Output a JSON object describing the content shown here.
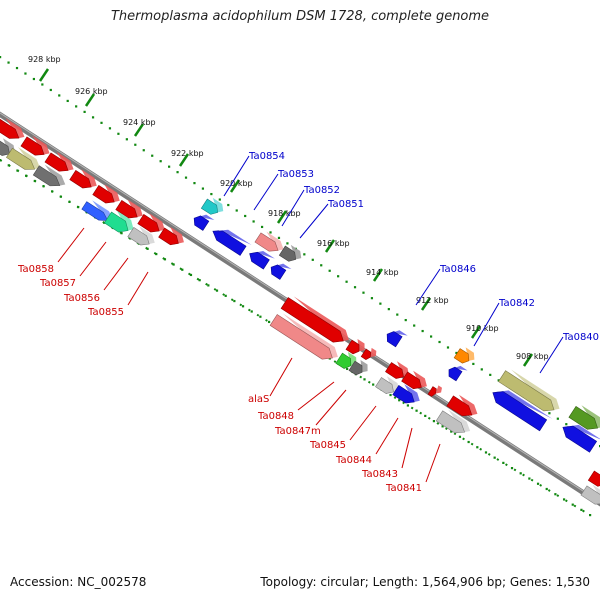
{
  "title": "Thermoplasma acidophilum DSM 1728, complete genome",
  "footer": {
    "accession": "Accession: NC_002578",
    "summary": "Topology: circular; Length: 1,564,906 bp; Genes: 1,530"
  },
  "colors": {
    "forward_label": "#0000cc",
    "reverse_label": "#cc0000",
    "scale_ticks": "#118811",
    "backbone": "#808080"
  },
  "scale_ticks": [
    {
      "label": "928 kbp"
    },
    {
      "label": "926 kbp"
    },
    {
      "label": "924 kbp"
    },
    {
      "label": "922 kbp"
    },
    {
      "label": "920 kbp"
    },
    {
      "label": "918 kbp"
    },
    {
      "label": "916 kbp"
    },
    {
      "label": "914 kbp"
    },
    {
      "label": "912 kbp"
    },
    {
      "label": "910 kbp"
    },
    {
      "label": "908 kbp"
    }
  ],
  "forward_labels": [
    {
      "label": "Ta0854"
    },
    {
      "label": "Ta0853"
    },
    {
      "label": "Ta0852"
    },
    {
      "label": "Ta0851"
    },
    {
      "label": "Ta0846"
    },
    {
      "label": "Ta0842"
    },
    {
      "label": "Ta0840"
    }
  ],
  "reverse_labels": [
    {
      "label": "Ta0858"
    },
    {
      "label": "Ta0857"
    },
    {
      "label": "Ta0856"
    },
    {
      "label": "Ta0855"
    },
    {
      "label": "alaS"
    },
    {
      "label": "Ta0848"
    },
    {
      "label": "Ta0847m"
    },
    {
      "label": "Ta0845"
    },
    {
      "label": "Ta0844"
    },
    {
      "label": "Ta0843"
    },
    {
      "label": "Ta0841"
    }
  ]
}
